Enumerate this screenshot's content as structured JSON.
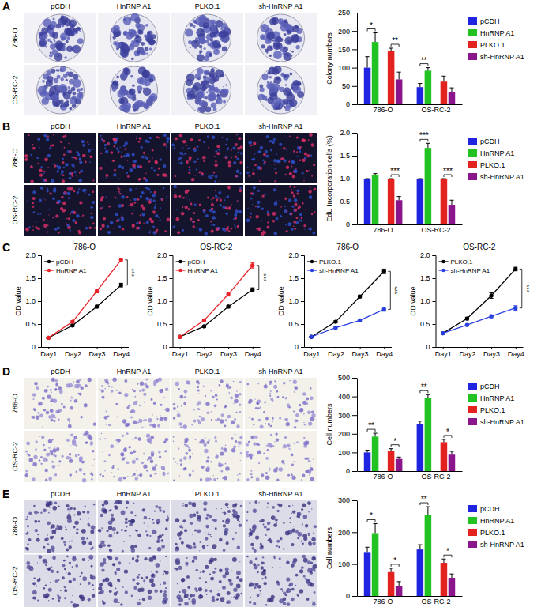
{
  "figure_panels": [
    {
      "letter": "A",
      "columns": [
        "pCDH",
        "HnRNP A1",
        "PLKO.1",
        "sh-HnRNP A1"
      ],
      "rows": [
        "786-O",
        "OS-RC-2"
      ]
    },
    {
      "letter": "B",
      "columns": [
        "pCDH",
        "HnRNP A1",
        "PLKO.1",
        "sh-HnRNP A1"
      ],
      "rows": [
        "786-O",
        "OS-RC-2"
      ]
    },
    {
      "letter": "C"
    },
    {
      "letter": "D",
      "columns": [
        "pCDH",
        "HnRNP A1",
        "PLKO.1",
        "sh-HnRNP A1"
      ],
      "rows": [
        "786-O",
        "OS-RC-2"
      ]
    },
    {
      "letter": "E",
      "columns": [
        "pCDH",
        "HnRNP A1",
        "PLKO.1",
        "sh-HnRNP A1"
      ],
      "rows": [
        "786-O",
        "OS-RC-2"
      ]
    }
  ],
  "chart_data": [
    {
      "type": "bar",
      "y_label": "Colony numbers",
      "categories": [
        "786-O",
        "OS-RC-2"
      ],
      "ylim": [
        0,
        250
      ],
      "yticks": [
        0,
        50,
        100,
        150,
        200,
        250
      ],
      "legend": "right",
      "series": [
        {
          "name": "pCDH",
          "color": "#1f24e0",
          "values": [
            100,
            47
          ],
          "errors": [
            30,
            10
          ]
        },
        {
          "name": "HnRNP A1",
          "color": "#23c223",
          "values": [
            170,
            92
          ],
          "errors": [
            25,
            8
          ]
        },
        {
          "name": "PLKO.1",
          "color": "#e3221f",
          "values": [
            145,
            62
          ],
          "errors": [
            8,
            15
          ]
        },
        {
          "name": "sh-HnRNP A1",
          "color": "#8b158b",
          "values": [
            68,
            33
          ],
          "errors": [
            20,
            12
          ]
        }
      ],
      "annotations": [
        {
          "text": "*",
          "category": 0,
          "between": [
            0,
            1
          ]
        },
        {
          "text": "**",
          "category": 0,
          "between": [
            2,
            3
          ]
        },
        {
          "text": "**",
          "category": 1,
          "between": [
            0,
            1
          ]
        }
      ]
    },
    {
      "type": "bar",
      "y_label": "EdU Incorporation cells (%)",
      "categories": [
        "786-O",
        "OS-RC-2"
      ],
      "ylim": [
        0,
        2
      ],
      "yticks": [
        0,
        0.5,
        {
          "value": 1,
          "label": "1.0"
        },
        1.5,
        {
          "value": 2,
          "label": "2.0"
        }
      ],
      "legend": "right",
      "series": [
        {
          "name": "pCDH",
          "color": "#1f24e0",
          "values": [
            1.0,
            1.0
          ],
          "errors": [
            0,
            0
          ]
        },
        {
          "name": "HnRNP A1",
          "color": "#23c223",
          "values": [
            1.07,
            1.67
          ],
          "errors": [
            0.04,
            0.1
          ]
        },
        {
          "name": "PLKO.1",
          "color": "#e3221f",
          "values": [
            1.0,
            1.0
          ],
          "errors": [
            0,
            0
          ]
        },
        {
          "name": "sh-HnRNP A1",
          "color": "#8b158b",
          "values": [
            0.53,
            0.43
          ],
          "errors": [
            0.08,
            0.1
          ]
        }
      ],
      "annotations": [
        {
          "text": "***",
          "category": 0,
          "between": [
            2,
            3
          ]
        },
        {
          "text": "***",
          "category": 1,
          "between": [
            0,
            1
          ]
        },
        {
          "text": "***",
          "category": 1,
          "between": [
            2,
            3
          ]
        }
      ]
    },
    {
      "type": "line",
      "title": "786-O",
      "y_label": "OD value",
      "categories": [
        "Day1",
        "Day2",
        "Day3",
        "Day4"
      ],
      "ylim": [
        0,
        2
      ],
      "yticks": [
        0,
        0.5,
        {
          "value": 1,
          "label": "1.0"
        },
        1.5,
        {
          "value": 2,
          "label": "2.0"
        }
      ],
      "legend": "upper left",
      "series": [
        {
          "name": "pCDH",
          "color": "#000000",
          "marker": "circle",
          "values": [
            0.2,
            0.47,
            0.88,
            1.35
          ],
          "errors": [
            0.01,
            0.02,
            0.03,
            0.04
          ]
        },
        {
          "name": "HnRNP A1",
          "color": "#e8242a",
          "marker": "circle",
          "values": [
            0.2,
            0.55,
            1.22,
            1.9
          ],
          "errors": [
            0.01,
            0.02,
            0.04,
            0.04
          ]
        }
      ],
      "annotations": [
        {
          "text": "***",
          "category": 3,
          "between": [
            0,
            1
          ]
        }
      ]
    },
    {
      "type": "line",
      "title": "OS-RC-2",
      "y_label": "OD value",
      "categories": [
        "Day1",
        "Day2",
        "Day3",
        "Day4"
      ],
      "ylim": [
        0,
        2
      ],
      "yticks": [
        0,
        0.5,
        {
          "value": 1,
          "label": "1.0"
        },
        1.5,
        {
          "value": 2,
          "label": "2.0"
        }
      ],
      "legend": "upper left",
      "series": [
        {
          "name": "pCDH",
          "color": "#000000",
          "marker": "circle",
          "values": [
            0.22,
            0.45,
            0.88,
            1.25
          ],
          "errors": [
            0.01,
            0.02,
            0.03,
            0.04
          ]
        },
        {
          "name": "HnRNP A1",
          "color": "#e8242a",
          "marker": "circle",
          "values": [
            0.22,
            0.58,
            1.15,
            1.78
          ],
          "errors": [
            0.01,
            0.03,
            0.04,
            0.06
          ]
        }
      ],
      "annotations": [
        {
          "text": "***",
          "category": 3,
          "between": [
            0,
            1
          ]
        }
      ]
    },
    {
      "type": "line",
      "title": "786-O",
      "y_label": "OD value",
      "categories": [
        "Day1",
        "Day2",
        "Day3",
        "Day4"
      ],
      "ylim": [
        0,
        2
      ],
      "yticks": [
        0,
        0.5,
        {
          "value": 1,
          "label": "1.0"
        },
        1.5,
        {
          "value": 2,
          "label": "2.0"
        }
      ],
      "legend": "upper left",
      "series": [
        {
          "name": "PLKO.1",
          "color": "#000000",
          "marker": "circle",
          "values": [
            0.22,
            0.55,
            1.1,
            1.65
          ],
          "errors": [
            0.01,
            0.02,
            0.03,
            0.05
          ]
        },
        {
          "name": "sh-HnRNP A1",
          "color": "#2a3fe0",
          "marker": "circle",
          "values": [
            0.22,
            0.42,
            0.58,
            0.82
          ],
          "errors": [
            0.01,
            0.02,
            0.03,
            0.04
          ]
        }
      ],
      "annotations": [
        {
          "text": "***",
          "category": 3,
          "between": [
            0,
            1
          ]
        }
      ]
    },
    {
      "type": "line",
      "title": "OS-RC-2",
      "y_label": "OD value",
      "categories": [
        "Day1",
        "Day2",
        "Day3",
        "Day4"
      ],
      "ylim": [
        0,
        2
      ],
      "yticks": [
        0,
        0.5,
        {
          "value": 1,
          "label": "1.0"
        },
        1.5,
        {
          "value": 2,
          "label": "2.0"
        }
      ],
      "legend": "upper left",
      "series": [
        {
          "name": "PLKO.1",
          "color": "#000000",
          "marker": "circle",
          "values": [
            0.3,
            0.62,
            1.12,
            1.7
          ],
          "errors": [
            0.01,
            0.03,
            0.06,
            0.04
          ]
        },
        {
          "name": "sh-HnRNP A1",
          "color": "#2a3fe0",
          "marker": "circle",
          "values": [
            0.3,
            0.48,
            0.67,
            0.85
          ],
          "errors": [
            0.01,
            0.02,
            0.03,
            0.05
          ]
        }
      ],
      "annotations": [
        {
          "text": "***",
          "category": 3,
          "between": [
            0,
            1
          ]
        }
      ]
    },
    {
      "type": "bar",
      "y_label": "Cell numbers",
      "categories": [
        "786-O",
        "OS-RC-2"
      ],
      "ylim": [
        0,
        500
      ],
      "yticks": [
        0,
        100,
        200,
        300,
        400,
        500
      ],
      "legend": "right",
      "series": [
        {
          "name": "pCDH",
          "color": "#1f24e0",
          "values": [
            100,
            250
          ],
          "errors": [
            12,
            18
          ]
        },
        {
          "name": "HnRNP A1",
          "color": "#23c223",
          "values": [
            185,
            390
          ],
          "errors": [
            18,
            20
          ]
        },
        {
          "name": "PLKO.1",
          "color": "#e3221f",
          "values": [
            108,
            155
          ],
          "errors": [
            12,
            15
          ]
        },
        {
          "name": "sh-HnRNP A1",
          "color": "#8b158b",
          "values": [
            65,
            88
          ],
          "errors": [
            10,
            18
          ]
        }
      ],
      "annotations": [
        {
          "text": "**",
          "category": 0,
          "between": [
            0,
            1
          ]
        },
        {
          "text": "*",
          "category": 0,
          "between": [
            2,
            3
          ]
        },
        {
          "text": "**",
          "category": 1,
          "between": [
            0,
            1
          ]
        },
        {
          "text": "*",
          "category": 1,
          "between": [
            2,
            3
          ]
        }
      ]
    },
    {
      "type": "bar",
      "y_label": "Cell numbers",
      "categories": [
        "786-O",
        "OS-RC-2"
      ],
      "ylim": [
        0,
        300
      ],
      "yticks": [
        0,
        100,
        200,
        300
      ],
      "legend": "right",
      "series": [
        {
          "name": "pCDH",
          "color": "#1f24e0",
          "values": [
            138,
            146
          ],
          "errors": [
            15,
            15
          ]
        },
        {
          "name": "HnRNP A1",
          "color": "#23c223",
          "values": [
            197,
            255
          ],
          "errors": [
            30,
            25
          ]
        },
        {
          "name": "PLKO.1",
          "color": "#e3221f",
          "values": [
            75,
            104
          ],
          "errors": [
            12,
            12
          ]
        },
        {
          "name": "sh-HnRNP A1",
          "color": "#8b158b",
          "values": [
            30,
            57
          ],
          "errors": [
            15,
            12
          ]
        }
      ],
      "annotations": [
        {
          "text": "*",
          "category": 0,
          "between": [
            0,
            1
          ]
        },
        {
          "text": "*",
          "category": 0,
          "between": [
            2,
            3
          ]
        },
        {
          "text": "**",
          "category": 1,
          "between": [
            0,
            1
          ]
        },
        {
          "text": "*",
          "category": 1,
          "between": [
            2,
            3
          ]
        }
      ]
    }
  ]
}
